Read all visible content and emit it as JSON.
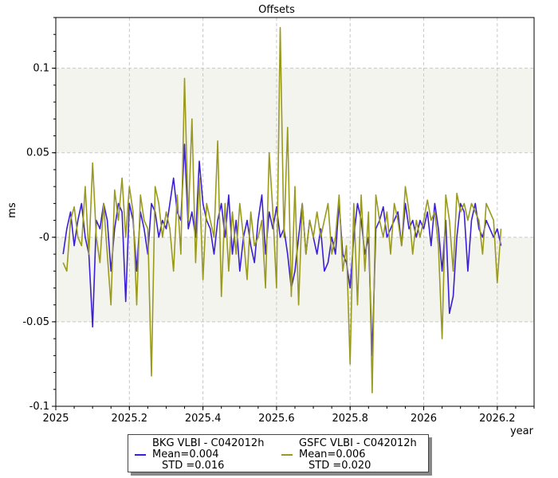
{
  "chart_data": {
    "type": "line",
    "title": "Offsets",
    "xlabel": "year",
    "ylabel": "ms",
    "xlim": [
      2025.0,
      2026.3
    ],
    "ylim": [
      -0.1,
      0.13
    ],
    "x_ticks": [
      2025,
      2025.2,
      2025.4,
      2025.6,
      2025.8,
      2026,
      2026.2
    ],
    "x_tick_labels": [
      "2025",
      "2025.2",
      "2025.4",
      "2025.6",
      "2025.8",
      "2026",
      "2026.2"
    ],
    "y_ticks": [
      -0.1,
      -0.05,
      0,
      0.05,
      0.1
    ],
    "y_tick_labels": [
      "-0.1",
      "-0.05",
      "-0",
      "0.05",
      "0.1"
    ],
    "grid": true,
    "shaded_bands": [
      [
        0.05,
        0.1
      ],
      [
        -0.05,
        0.0
      ]
    ],
    "colors": {
      "band": "#f4f4ef",
      "grid": "#c8c8c8"
    },
    "series": [
      {
        "name": "BKG VLBI - C042012h",
        "color": "#3a1fd6",
        "mean_label": "Mean=0.004",
        "std_label": "STD =0.016",
        "x": [
          2025.02,
          2025.03,
          2025.04,
          2025.05,
          2025.06,
          2025.07,
          2025.08,
          2025.09,
          2025.1,
          2025.11,
          2025.12,
          2025.13,
          2025.14,
          2025.15,
          2025.16,
          2025.17,
          2025.18,
          2025.19,
          2025.2,
          2025.21,
          2025.22,
          2025.23,
          2025.24,
          2025.25,
          2025.26,
          2025.27,
          2025.28,
          2025.29,
          2025.3,
          2025.31,
          2025.32,
          2025.33,
          2025.34,
          2025.35,
          2025.36,
          2025.37,
          2025.38,
          2025.39,
          2025.4,
          2025.41,
          2025.42,
          2025.43,
          2025.44,
          2025.45,
          2025.46,
          2025.47,
          2025.48,
          2025.49,
          2025.5,
          2025.51,
          2025.52,
          2025.53,
          2025.54,
          2025.55,
          2025.56,
          2025.57,
          2025.58,
          2025.59,
          2025.6,
          2025.61,
          2025.62,
          2025.63,
          2025.64,
          2025.65,
          2025.66,
          2025.67,
          2025.68,
          2025.69,
          2025.7,
          2025.71,
          2025.72,
          2025.73,
          2025.74,
          2025.75,
          2025.76,
          2025.77,
          2025.78,
          2025.79,
          2025.8,
          2025.81,
          2025.82,
          2025.83,
          2025.84,
          2025.85,
          2025.86,
          2025.87,
          2025.88,
          2025.89,
          2025.9,
          2025.91,
          2025.92,
          2025.93,
          2025.94,
          2025.95,
          2025.96,
          2025.97,
          2025.98,
          2025.99,
          2026.0,
          2026.01,
          2026.02,
          2026.03,
          2026.04,
          2026.05,
          2026.06,
          2026.07,
          2026.08,
          2026.09,
          2026.1,
          2026.11,
          2026.12,
          2026.13,
          2026.14,
          2026.15,
          2026.16,
          2026.17,
          2026.18,
          2026.19,
          2026.2,
          2026.21
        ],
        "y": [
          -0.01,
          0.005,
          0.015,
          -0.005,
          0.01,
          0.02,
          0.0,
          -0.01,
          -0.053,
          0.01,
          0.005,
          0.02,
          0.01,
          -0.02,
          0.005,
          0.02,
          0.015,
          -0.038,
          0.02,
          0.01,
          -0.02,
          0.015,
          0.005,
          -0.01,
          0.02,
          0.015,
          0.0,
          0.01,
          0.005,
          0.02,
          0.035,
          0.015,
          0.01,
          0.055,
          0.005,
          0.015,
          0.0,
          0.045,
          0.02,
          0.01,
          0.005,
          -0.01,
          0.01,
          0.02,
          0.0,
          0.025,
          -0.01,
          0.01,
          -0.02,
          0.0,
          0.01,
          -0.005,
          -0.015,
          0.01,
          0.025,
          -0.01,
          0.015,
          0.005,
          0.018,
          0.0,
          0.005,
          -0.01,
          -0.03,
          -0.02,
          0.0,
          0.02,
          -0.01,
          0.01,
          0.0,
          -0.01,
          0.005,
          -0.02,
          -0.015,
          0.0,
          -0.01,
          0.02,
          -0.01,
          -0.015,
          -0.03,
          0.0,
          0.02,
          0.01,
          -0.01,
          0.0,
          -0.07,
          0.005,
          0.01,
          0.018,
          0.0,
          0.005,
          0.01,
          0.015,
          -0.005,
          0.02,
          0.005,
          0.01,
          0.0,
          0.01,
          0.005,
          0.015,
          -0.005,
          0.02,
          0.005,
          -0.02,
          0.01,
          -0.045,
          -0.035,
          0.0,
          0.02,
          0.015,
          -0.02,
          0.01,
          0.02,
          0.005,
          0.0,
          0.01,
          0.005,
          0.0,
          0.005,
          -0.005
        ]
      },
      {
        "name": "GSFC VLBI - C042012h",
        "color": "#9a9a1e",
        "mean_label": "Mean=0.006",
        "std_label": "STD =0.020",
        "x": [
          2025.02,
          2025.03,
          2025.04,
          2025.05,
          2025.06,
          2025.07,
          2025.08,
          2025.09,
          2025.1,
          2025.11,
          2025.12,
          2025.13,
          2025.14,
          2025.15,
          2025.16,
          2025.17,
          2025.18,
          2025.19,
          2025.2,
          2025.21,
          2025.22,
          2025.23,
          2025.24,
          2025.25,
          2025.26,
          2025.27,
          2025.28,
          2025.29,
          2025.3,
          2025.31,
          2025.32,
          2025.33,
          2025.34,
          2025.35,
          2025.36,
          2025.37,
          2025.38,
          2025.39,
          2025.4,
          2025.41,
          2025.42,
          2025.43,
          2025.44,
          2025.45,
          2025.46,
          2025.47,
          2025.48,
          2025.49,
          2025.5,
          2025.51,
          2025.52,
          2025.53,
          2025.54,
          2025.55,
          2025.56,
          2025.57,
          2025.58,
          2025.59,
          2025.6,
          2025.61,
          2025.62,
          2025.63,
          2025.64,
          2025.65,
          2025.66,
          2025.67,
          2025.68,
          2025.69,
          2025.7,
          2025.71,
          2025.72,
          2025.73,
          2025.74,
          2025.75,
          2025.76,
          2025.77,
          2025.78,
          2025.79,
          2025.8,
          2025.81,
          2025.82,
          2025.83,
          2025.84,
          2025.85,
          2025.86,
          2025.87,
          2025.88,
          2025.89,
          2025.9,
          2025.91,
          2025.92,
          2025.93,
          2025.94,
          2025.95,
          2025.96,
          2025.97,
          2025.98,
          2025.99,
          2026.0,
          2026.01,
          2026.02,
          2026.03,
          2026.04,
          2026.05,
          2026.06,
          2026.07,
          2026.08,
          2026.09,
          2026.1,
          2026.11,
          2026.12,
          2026.13,
          2026.14,
          2026.15,
          2026.16,
          2026.17,
          2026.18,
          2026.19,
          2026.2,
          2026.21
        ],
        "y": [
          -0.015,
          -0.02,
          0.01,
          0.018,
          0.0,
          -0.005,
          0.03,
          -0.01,
          0.044,
          0.0,
          -0.015,
          0.02,
          -0.01,
          -0.04,
          0.028,
          0.01,
          0.035,
          0.0,
          0.03,
          0.015,
          -0.04,
          0.025,
          0.01,
          0.005,
          -0.082,
          0.03,
          0.02,
          0.0,
          0.015,
          0.005,
          -0.02,
          0.025,
          -0.01,
          0.094,
          0.01,
          0.07,
          -0.015,
          0.035,
          -0.025,
          0.02,
          0.01,
          0.0,
          0.057,
          -0.035,
          0.02,
          -0.02,
          0.015,
          -0.01,
          0.02,
          0.0,
          -0.025,
          0.015,
          -0.005,
          0.0,
          0.01,
          -0.03,
          0.05,
          0.015,
          -0.03,
          0.124,
          0.0,
          0.065,
          -0.035,
          0.03,
          -0.04,
          0.02,
          -0.01,
          0.01,
          0.0,
          0.015,
          0.0,
          0.01,
          0.02,
          -0.01,
          0.0,
          0.025,
          -0.02,
          -0.005,
          -0.075,
          0.02,
          -0.04,
          0.025,
          -0.02,
          0.015,
          -0.092,
          0.025,
          0.01,
          0.0,
          0.015,
          -0.01,
          0.02,
          0.01,
          -0.005,
          0.03,
          0.015,
          -0.01,
          0.01,
          0.0,
          0.01,
          0.022,
          0.01,
          0.015,
          -0.005,
          -0.06,
          0.025,
          0.01,
          -0.02,
          0.026,
          0.015,
          0.02,
          0.01,
          0.02,
          0.015,
          0.01,
          -0.01,
          0.02,
          0.015,
          0.01,
          -0.027,
          0.005
        ]
      }
    ]
  }
}
